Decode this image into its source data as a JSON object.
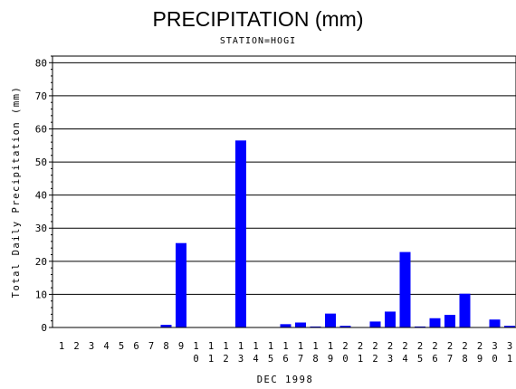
{
  "chart_data": {
    "type": "bar",
    "title": "PRECIPITATION (mm)",
    "subtitle": "STATION=HOGI",
    "xlabel": "DEC 1998",
    "ylabel": "Total Daily Precipitation (mm)",
    "ylim": [
      0,
      82
    ],
    "yticks": [
      0,
      10,
      20,
      30,
      40,
      50,
      60,
      70,
      80
    ],
    "grid": true,
    "bar_color": "#0000ff",
    "categories": [
      "1",
      "2",
      "3",
      "4",
      "5",
      "6",
      "7",
      "8",
      "9",
      "10",
      "11",
      "12",
      "13",
      "14",
      "15",
      "16",
      "17",
      "18",
      "19",
      "20",
      "21",
      "22",
      "23",
      "24",
      "25",
      "26",
      "27",
      "28",
      "29",
      "30",
      "31"
    ],
    "values": [
      0,
      0,
      0,
      0,
      0,
      0,
      0,
      0.8,
      25.5,
      0,
      0,
      0,
      56.5,
      0,
      0,
      1.0,
      1.5,
      0.3,
      4.2,
      0.5,
      0,
      1.8,
      4.8,
      22.8,
      0.3,
      2.8,
      3.8,
      10.2,
      0,
      2.4,
      0.5
    ]
  }
}
